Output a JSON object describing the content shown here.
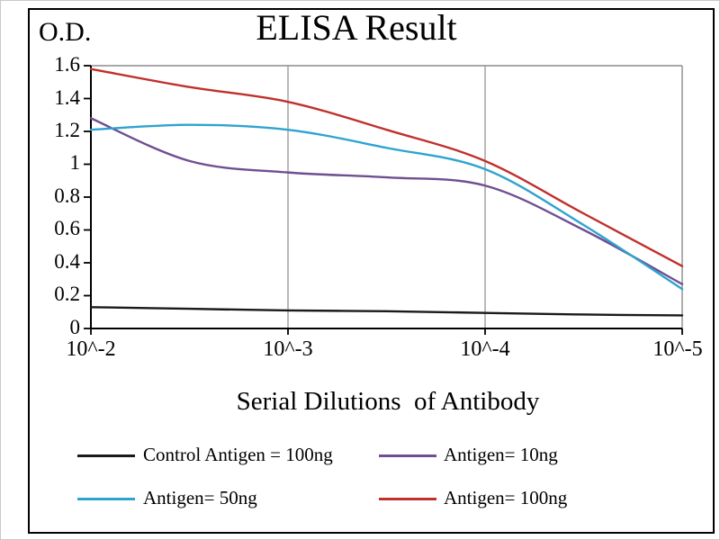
{
  "chart_data": {
    "type": "line",
    "title": "ELISA Result",
    "ylabel": "O.D.",
    "xlabel": "Serial Dilutions  of Antibody",
    "x_axis": {
      "tick_labels": [
        "10^-2",
        "10^-3",
        "10^-4",
        "10^-5"
      ],
      "scale": "serial dilution exponent, linear in exponent",
      "exponent_range": [
        -2,
        -5
      ]
    },
    "y_axis": {
      "tick_labels": [
        "1.6",
        "1.4",
        "1.2",
        "1",
        "0.8",
        "0.6",
        "0.4",
        "0.2",
        "0"
      ],
      "range": [
        0,
        1.6
      ]
    },
    "x_exponents": [
      -2,
      -2.5,
      -3,
      -3.5,
      -4,
      -4.5,
      -5
    ],
    "ylim": [
      0,
      1.6
    ],
    "series": [
      {
        "name": "Control Antigen = 100ng",
        "color": "#1a1a1a",
        "values": [
          0.13,
          0.12,
          0.11,
          0.105,
          0.095,
          0.085,
          0.08
        ]
      },
      {
        "name": "Antigen= 10ng",
        "color": "#6e4f91",
        "values": [
          1.28,
          1.02,
          0.95,
          0.92,
          0.87,
          0.6,
          0.27
        ]
      },
      {
        "name": "Antigen= 50ng",
        "color": "#2fa3cf",
        "values": [
          1.21,
          1.24,
          1.21,
          1.1,
          0.97,
          0.63,
          0.24
        ]
      },
      {
        "name": "Antigen= 100ng",
        "color": "#c0302c",
        "values": [
          1.58,
          1.47,
          1.38,
          1.21,
          1.02,
          0.7,
          0.38
        ]
      }
    ],
    "legend_position": "bottom, two rows",
    "grid": "vertical gridlines at x ticks only"
  }
}
